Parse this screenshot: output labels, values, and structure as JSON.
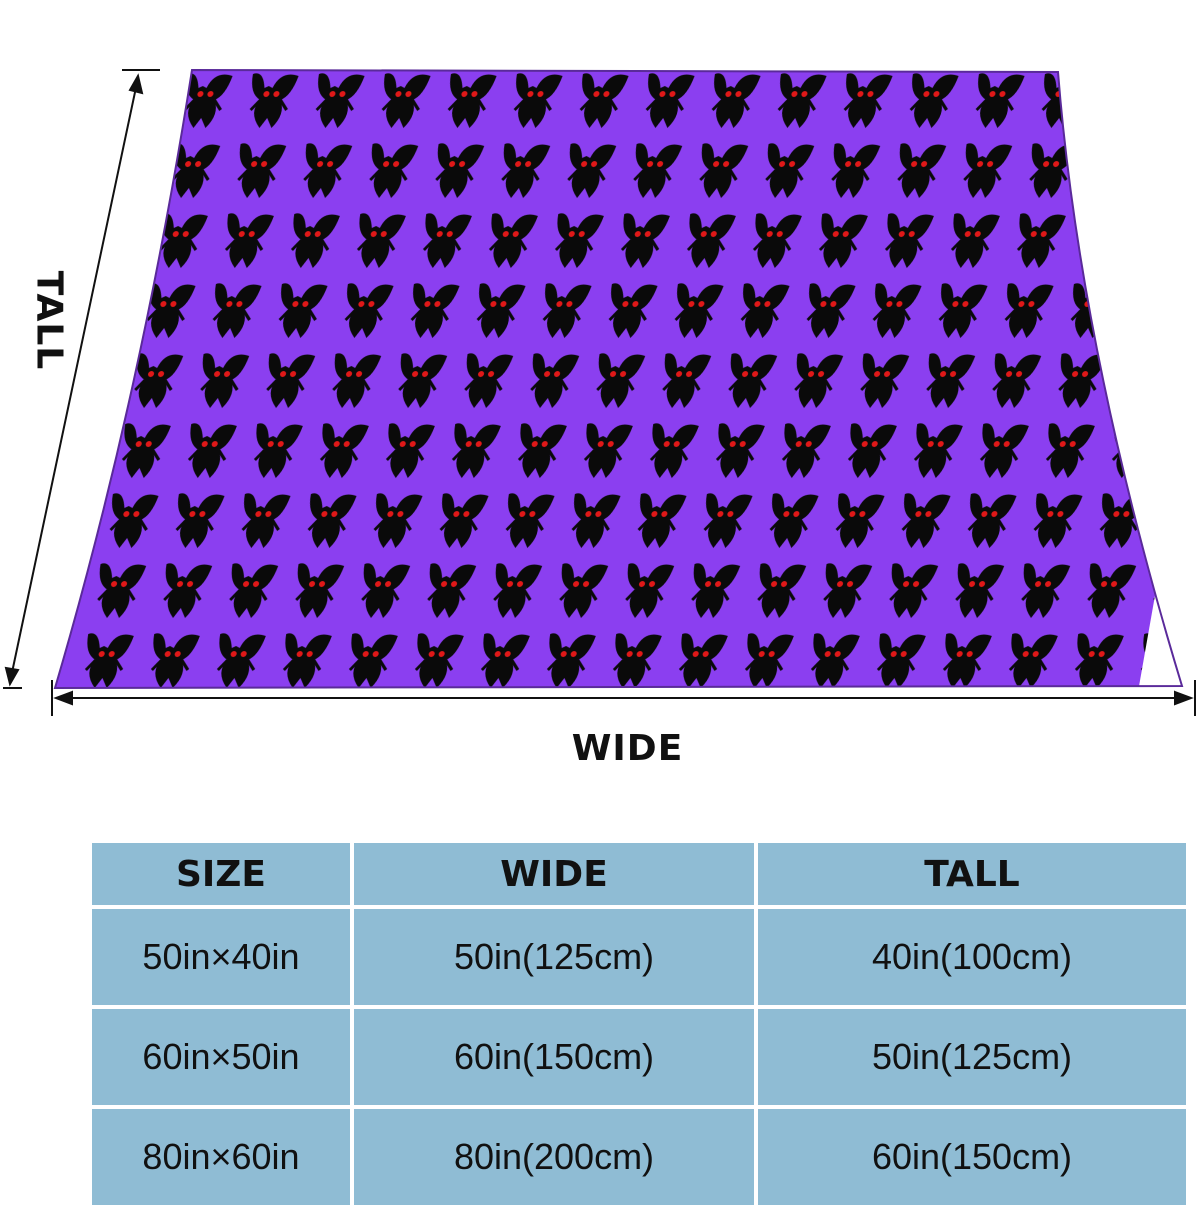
{
  "labels": {
    "tall": "TALL",
    "wide": "WIDE"
  },
  "colors": {
    "blanket": "#8b3ff0",
    "pattern": "#0a0a0a",
    "eyes": "#e01818",
    "table_cell": "#8fbcd4"
  },
  "table": {
    "headers": [
      "SIZE",
      "WIDE",
      "TALL"
    ],
    "rows": [
      [
        "50in×40in",
        "50in(125cm)",
        "40in(100cm)"
      ],
      [
        "60in×50in",
        "60in(150cm)",
        "50in(125cm)"
      ],
      [
        "80in×60in",
        "80in(200cm)",
        "60in(150cm)"
      ]
    ]
  }
}
